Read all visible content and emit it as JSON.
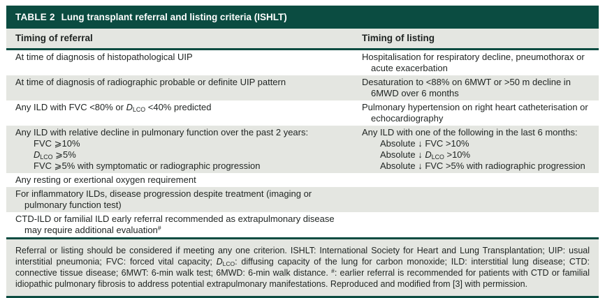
{
  "colors": {
    "teal": "#0b4c41",
    "row_shade": "#e4e6e1",
    "text": "#1f2422",
    "title_text": "#ffffff"
  },
  "table": {
    "label": "TABLE 2",
    "title": "Lung transplant referral and listing criteria (ISHLT)",
    "columns": [
      "Timing of referral",
      "Timing of listing"
    ],
    "rows": [
      {
        "shade": false,
        "referral": {
          "main": "At time of diagnosis of histopathological UIP",
          "subs": []
        },
        "listing": {
          "main": "Hospitalisation for respiratory decline, pneumothorax or acute exacerbation",
          "subs": []
        }
      },
      {
        "shade": true,
        "referral": {
          "main": "At time of diagnosis of radiographic probable or definite UIP pattern",
          "subs": []
        },
        "listing": {
          "main": "Desaturation to <88% on 6MWT or >50 m decline in 6MWD over 6 months",
          "subs": []
        }
      },
      {
        "shade": false,
        "referral": {
          "main": "Any ILD with FVC <80% or *D*_{LCO} <40% predicted",
          "subs": []
        },
        "listing": {
          "main": "Pulmonary hypertension on right heart catheterisation or echocardiography",
          "subs": []
        }
      },
      {
        "shade": true,
        "referral": {
          "main": "Any ILD with relative decline in pulmonary function over the past 2 years:",
          "subs": [
            "FVC ⩾10%",
            "*D*_{LCO} ⩾5%",
            "FVC ⩾5% with symptomatic or radiographic progression"
          ]
        },
        "listing": {
          "main": "Any ILD with one of the following in the last 6 months:",
          "subs": [
            "Absolute ↓ FVC >10%",
            "Absolute ↓ *D*_{LCO} >10%",
            "Absolute ↓ FVC >5% with radiographic progression"
          ]
        }
      },
      {
        "shade": false,
        "referral": {
          "main": "Any resting or exertional oxygen requirement",
          "subs": []
        },
        "listing": {
          "main": "",
          "subs": []
        }
      },
      {
        "shade": true,
        "referral": {
          "main": "For inflammatory ILDs, disease progression despite treatment (imaging or pulmonary function test)",
          "subs": []
        },
        "listing": {
          "main": "",
          "subs": []
        }
      },
      {
        "shade": false,
        "referral": {
          "main": "CTD-ILD or familial ILD early referral recommended as extrapulmonary disease may require additional evaluation^{#}",
          "subs": []
        },
        "listing": {
          "main": "",
          "subs": []
        }
      }
    ],
    "footnote": "Referral or listing should be considered if meeting any one criterion. ISHLT: International Society for Heart and Lung Transplantation; UIP: usual interstitial pneumonia; FVC: forced vital capacity; *D*_{LCO}: diffusing capacity of the lung for carbon monoxide; ILD: interstitial lung disease; CTD: connective tissue disease; 6MWT: 6-min walk test; 6MWD: 6-min walk distance. ^{#}: earlier referral is recommended for patients with CTD or familial idiopathic pulmonary fibrosis to address potential extrapulmonary manifestations. Reproduced and modified from [3] with permission."
  }
}
